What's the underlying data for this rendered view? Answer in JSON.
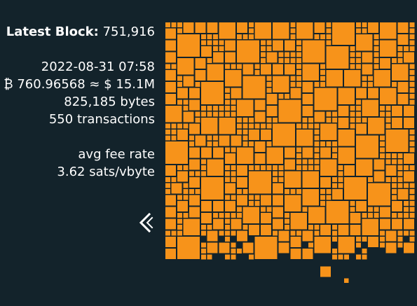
{
  "block": {
    "latest_label": "Latest Block:",
    "height": "751,916",
    "timestamp": "2022-08-31 07:58",
    "value_btc": "₿ 760.96568 ≈ $ 15.1M",
    "size": "825,185 bytes",
    "tx_count": "550 transactions",
    "fee_label": "avg fee rate",
    "fee_value": "3.62 sats/vbyte"
  },
  "icons": {
    "back": "chevron-left-icon"
  },
  "colors": {
    "background": "#13232b",
    "tx_fill": "#f7931a",
    "text": "#ffffff"
  }
}
